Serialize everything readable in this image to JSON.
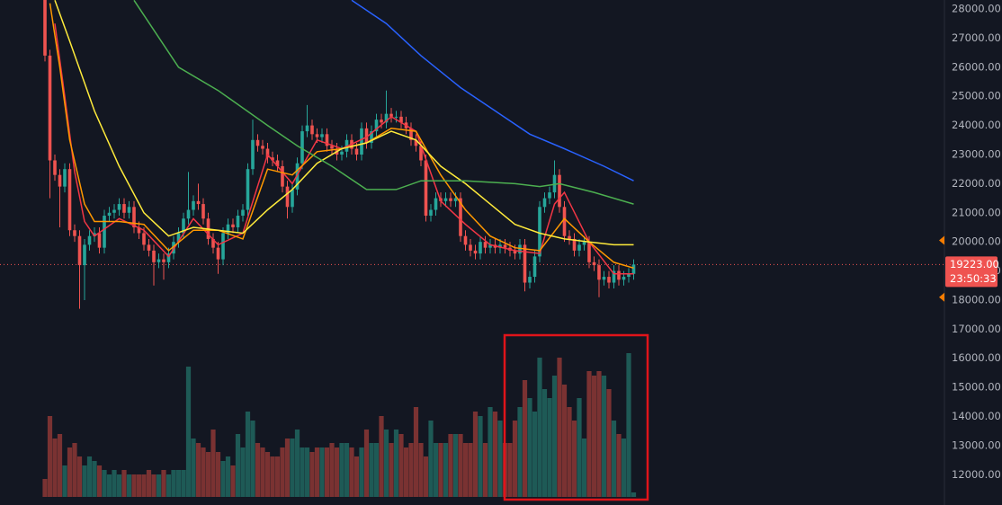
{
  "chart_data": {
    "type": "candlestick",
    "ylim": [
      10960,
      28310
    ],
    "yticks": [
      {
        "value": 12000,
        "label": "12000.00"
      },
      {
        "value": 13000,
        "label": "13000.00"
      },
      {
        "value": 14000,
        "label": "14000.00"
      },
      {
        "value": 15000,
        "label": "15000.00"
      },
      {
        "value": 16000,
        "label": "16000.00"
      },
      {
        "value": 17000,
        "label": "17000.00"
      },
      {
        "value": 18000,
        "label": "18000.00"
      },
      {
        "value": 19000,
        "label": "19000.00"
      },
      {
        "value": 20000,
        "label": "20000.00"
      },
      {
        "value": 21000,
        "label": "21000.00"
      },
      {
        "value": 22000,
        "label": "22000.00"
      },
      {
        "value": 23000,
        "label": "23000.00"
      },
      {
        "value": 24000,
        "label": "24000.00"
      },
      {
        "value": 25000,
        "label": "25000.00"
      },
      {
        "value": 26000,
        "label": "26000.00"
      },
      {
        "value": 27000,
        "label": "27000.00"
      },
      {
        "value": 28000,
        "label": "28000.00"
      }
    ],
    "grid": false,
    "up_color": "#26a69a",
    "down_color": "#ef5350",
    "volume_up_color": "#1e5a56",
    "volume_down_color": "#7a3232",
    "vlim": [
      0,
      200
    ],
    "candles": {
      "open": [
        28500,
        26400,
        22800,
        22300,
        21900,
        22500,
        20400,
        20200,
        19200,
        19900,
        20200,
        20300,
        19800,
        20900,
        21000,
        21100,
        21300,
        21000,
        21200,
        20500,
        20300,
        19900,
        19700,
        19300,
        19400,
        19300,
        19600,
        20000,
        20300,
        20800,
        21100,
        21400,
        21300,
        20800,
        20100,
        19800,
        19400,
        20300,
        20600,
        20500,
        20900,
        21100,
        22500,
        23500,
        23300,
        23200,
        22900,
        22800,
        22600,
        21900,
        21200,
        21800,
        22700,
        23800,
        24000,
        23700,
        23600,
        23700,
        23300,
        23200,
        23000,
        23100,
        23500,
        23200,
        23000,
        23900,
        23400,
        23800,
        24200,
        24100,
        24400,
        24300,
        24300,
        24100,
        23900,
        23500,
        23300,
        22800,
        20900,
        21100,
        21500,
        21400,
        21500,
        21400,
        21500,
        20200,
        19900,
        19700,
        19600,
        20000,
        19800,
        19900,
        19800,
        19900,
        19800,
        19700,
        19600,
        19900,
        18600,
        18800,
        19500,
        21200,
        21500,
        21700,
        22300,
        21200,
        20200,
        20100,
        19700,
        19900,
        20000,
        19300,
        19200,
        18700,
        18800,
        18600,
        19000,
        18700,
        18800,
        18900
      ],
      "high": [
        29000,
        26600,
        23000,
        22500,
        22700,
        22700,
        20600,
        20400,
        20100,
        20400,
        20500,
        20500,
        21100,
        21200,
        21300,
        21500,
        21500,
        21400,
        21400,
        20700,
        20500,
        20100,
        19900,
        19600,
        19600,
        19800,
        20200,
        20500,
        21000,
        22400,
        21600,
        22000,
        21500,
        21000,
        20300,
        20000,
        20500,
        20800,
        20800,
        21100,
        21300,
        22700,
        24200,
        23700,
        23500,
        23400,
        23100,
        23000,
        22800,
        22100,
        22000,
        22900,
        24000,
        24700,
        24200,
        23900,
        23900,
        23900,
        23500,
        23400,
        23300,
        23700,
        23700,
        23400,
        24100,
        24100,
        24000,
        24400,
        24400,
        25200,
        24600,
        24500,
        24500,
        24300,
        24100,
        23700,
        23500,
        23000,
        21300,
        21700,
        21700,
        21700,
        21700,
        21700,
        21700,
        20400,
        20100,
        19900,
        20200,
        20200,
        20100,
        20100,
        20100,
        20100,
        20000,
        19900,
        20100,
        20100,
        19000,
        19700,
        21400,
        21700,
        21900,
        22800,
        22500,
        21400,
        20400,
        20300,
        20100,
        20200,
        20200,
        19500,
        19400,
        19000,
        19000,
        19200,
        19200,
        19000,
        19100,
        19400
      ],
      "low": [
        26200,
        21500,
        22100,
        20500,
        21700,
        20200,
        20000,
        17700,
        18000,
        19700,
        20000,
        19600,
        19600,
        20700,
        20800,
        20900,
        20800,
        20800,
        20300,
        20100,
        19700,
        19500,
        18500,
        19100,
        18700,
        19100,
        19400,
        19800,
        20100,
        20600,
        20900,
        21100,
        20600,
        19900,
        19600,
        18900,
        19200,
        20100,
        20300,
        20300,
        20700,
        20900,
        22300,
        23100,
        23000,
        22700,
        22600,
        22400,
        21700,
        20800,
        21000,
        21600,
        22500,
        23600,
        23500,
        23400,
        23400,
        23100,
        23000,
        22800,
        22800,
        22900,
        23000,
        22800,
        22800,
        23200,
        23200,
        23600,
        23900,
        23900,
        24100,
        24100,
        23900,
        23700,
        23300,
        23100,
        22600,
        20700,
        20700,
        20900,
        21200,
        21200,
        21200,
        21200,
        20000,
        19700,
        19500,
        19400,
        19400,
        19600,
        19600,
        19600,
        19600,
        19600,
        19500,
        19400,
        19400,
        18300,
        18400,
        18600,
        19300,
        21000,
        21300,
        21500,
        21000,
        20000,
        19900,
        19500,
        19500,
        19700,
        19100,
        19000,
        18100,
        18500,
        18400,
        18400,
        18500,
        18500,
        18600,
        18700
      ],
      "close": [
        26400,
        22800,
        22300,
        21900,
        22500,
        20400,
        20200,
        19200,
        19900,
        20200,
        20300,
        19800,
        20900,
        21000,
        21100,
        21300,
        21000,
        21200,
        20500,
        20300,
        19900,
        19700,
        19300,
        19400,
        19300,
        19600,
        20000,
        20300,
        20800,
        21100,
        21400,
        21300,
        20800,
        20100,
        19800,
        19400,
        20300,
        20600,
        20500,
        20900,
        21100,
        22500,
        23500,
        23300,
        23200,
        22900,
        22800,
        22600,
        21900,
        21200,
        21800,
        22700,
        23800,
        24000,
        23700,
        23600,
        23700,
        23300,
        23200,
        23000,
        23100,
        23500,
        23200,
        23000,
        23900,
        23400,
        23800,
        24200,
        24100,
        24400,
        24300,
        24300,
        24100,
        23900,
        23500,
        23300,
        22800,
        20900,
        21100,
        21500,
        21400,
        21500,
        21400,
        21500,
        20200,
        19900,
        19700,
        19600,
        20000,
        19800,
        19900,
        19800,
        19900,
        19800,
        19700,
        19600,
        19900,
        18600,
        18800,
        19500,
        21200,
        21500,
        21700,
        22300,
        21200,
        20200,
        20100,
        19700,
        19900,
        20000,
        19300,
        19200,
        18700,
        18800,
        18600,
        19000,
        18700,
        18800,
        18900,
        19223
      ]
    },
    "volume": [
      20,
      90,
      65,
      70,
      35,
      55,
      60,
      45,
      35,
      45,
      40,
      35,
      30,
      25,
      30,
      25,
      30,
      25,
      25,
      25,
      25,
      30,
      25,
      25,
      30,
      25,
      30,
      30,
      30,
      145,
      65,
      60,
      55,
      50,
      75,
      50,
      40,
      45,
      35,
      70,
      55,
      95,
      85,
      60,
      55,
      50,
      45,
      45,
      55,
      65,
      65,
      75,
      55,
      55,
      50,
      55,
      55,
      55,
      60,
      55,
      60,
      60,
      55,
      45,
      55,
      75,
      60,
      60,
      90,
      75,
      60,
      75,
      70,
      55,
      60,
      100,
      60,
      45,
      85,
      60,
      60,
      60,
      70,
      70,
      70,
      60,
      60,
      95,
      90,
      60,
      100,
      95,
      85,
      60,
      60,
      85,
      100,
      130,
      110,
      95,
      155,
      120,
      110,
      135,
      155,
      125,
      100,
      85,
      110,
      65,
      140,
      135,
      140,
      135,
      120,
      85,
      70,
      65,
      160,
      5
    ],
    "lines": [
      {
        "color": "#f23645",
        "x": [
          2,
          4,
          6,
          8,
          10,
          15,
          20,
          25,
          30,
          35,
          40,
          45,
          50,
          55,
          60,
          65,
          70,
          75,
          80,
          85,
          90,
          95,
          100,
          103,
          105,
          110,
          115,
          119
        ],
        "values": [
          27500,
          25000,
          22400,
          20700,
          20200,
          20800,
          20400,
          19500,
          20800,
          19900,
          20300,
          23000,
          22000,
          23500,
          23200,
          23600,
          24300,
          23800,
          21400,
          20600,
          19900,
          19700,
          19600,
          21300,
          21700,
          20000,
          18900,
          18900
        ]
      },
      {
        "color": "#ff9800",
        "x": [
          1,
          3,
          5,
          8,
          10,
          15,
          20,
          25,
          30,
          35,
          40,
          45,
          50,
          55,
          60,
          65,
          70,
          75,
          80,
          85,
          90,
          95,
          100,
          105,
          110,
          115,
          119
        ],
        "values": [
          28200,
          26000,
          23500,
          21300,
          20700,
          20700,
          20600,
          19700,
          20400,
          20400,
          20100,
          22500,
          22300,
          23100,
          23200,
          23400,
          23900,
          23800,
          22300,
          21100,
          20200,
          19800,
          19700,
          20800,
          20000,
          19300,
          19100
        ]
      },
      {
        "color": "#ffeb3b",
        "x": [
          2,
          5,
          10,
          15,
          20,
          25,
          30,
          35,
          40,
          45,
          50,
          55,
          60,
          65,
          70,
          75,
          80,
          85,
          90,
          95,
          100,
          105,
          110,
          115,
          119
        ],
        "values": [
          28300,
          26900,
          24500,
          22600,
          21000,
          20200,
          20500,
          20400,
          20300,
          21100,
          21800,
          22700,
          23200,
          23400,
          23800,
          23500,
          22600,
          22000,
          21300,
          20600,
          20300,
          20100,
          20000,
          19900,
          19900
        ]
      },
      {
        "color": "#4caf50",
        "x": [
          18,
          27,
          35,
          45,
          51,
          58,
          65,
          71,
          76,
          85,
          95,
          100,
          104,
          111,
          119
        ],
        "values": [
          28300,
          26000,
          25200,
          24000,
          23300,
          22600,
          21800,
          21800,
          22100,
          22100,
          22000,
          21900,
          22000,
          21700,
          21300
        ]
      },
      {
        "color": "#2962ff",
        "x": [
          62,
          69,
          76,
          84,
          91,
          98,
          105,
          113,
          119
        ],
        "values": [
          28300,
          27500,
          26400,
          25300,
          24500,
          23700,
          23200,
          22600,
          22100
        ]
      }
    ],
    "last_price": {
      "value": 19223,
      "label": "19223.00"
    },
    "countdown": "23:50:33",
    "alert_levels": [
      20050,
      18100
    ]
  }
}
